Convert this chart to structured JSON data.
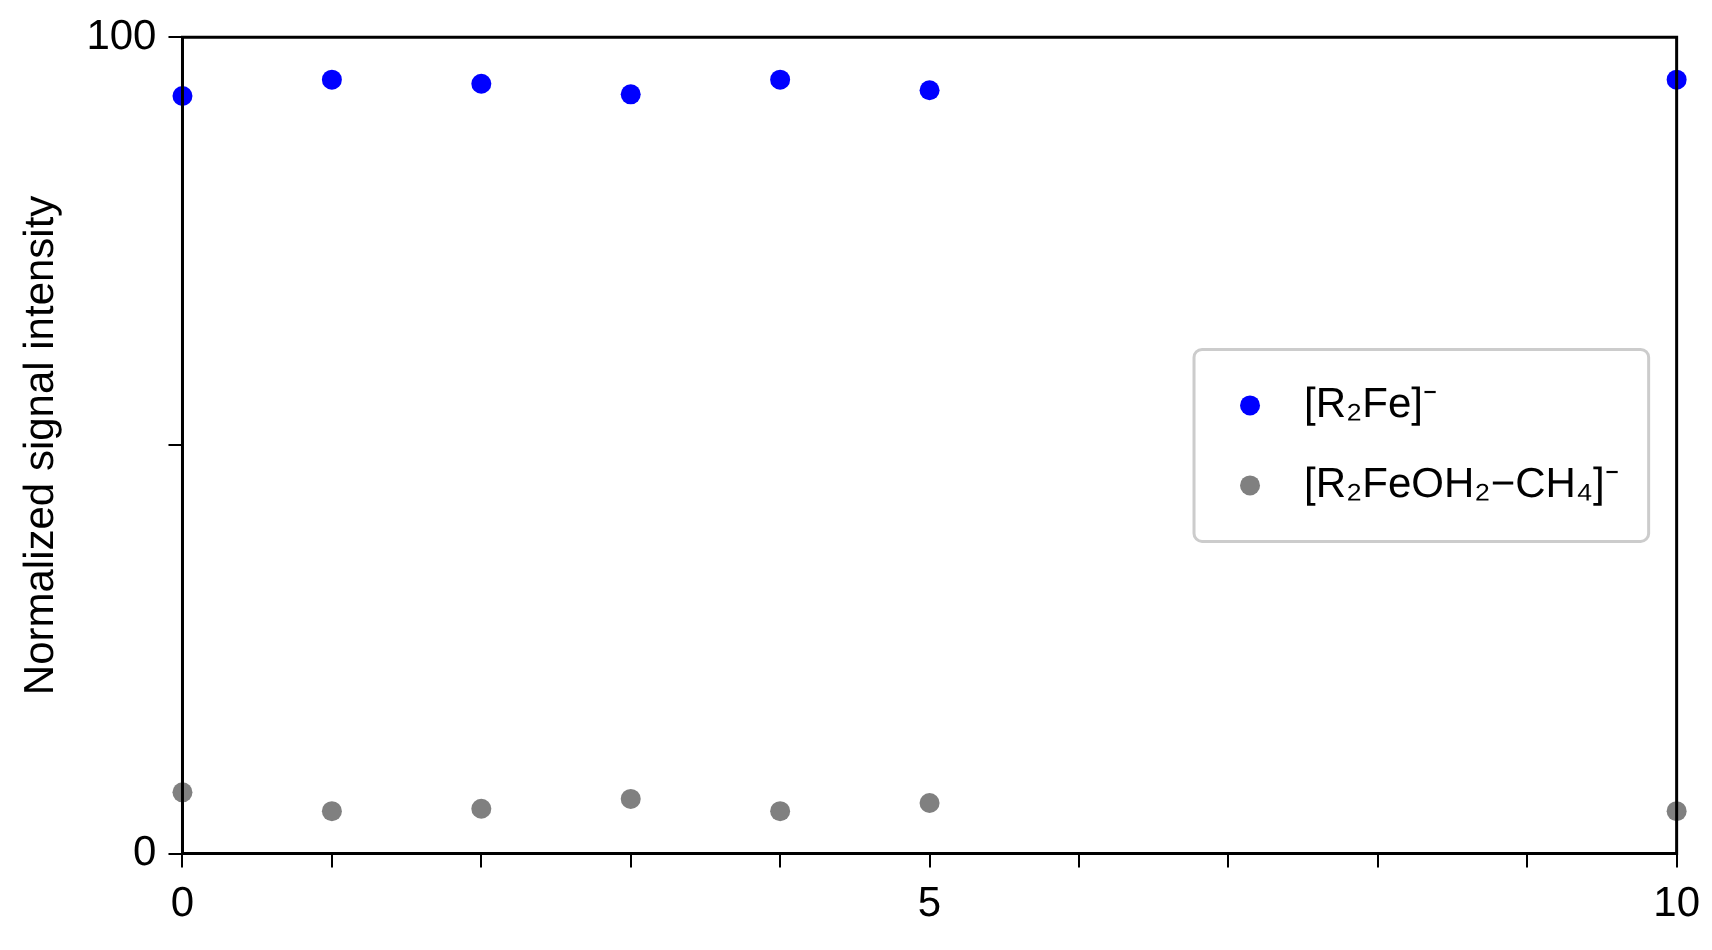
{
  "chart_data": {
    "type": "scatter",
    "ylabel": "Normalized signal intensity",
    "x": [
      0,
      1,
      2,
      3,
      4,
      5,
      10
    ],
    "series": [
      {
        "name": "[R₂Fe]⁻",
        "color": "#0000ff",
        "values": [
          92.8,
          94.8,
          94.3,
          93.0,
          94.8,
          93.5,
          94.8
        ]
      },
      {
        "name": "[R₂FeOH₂−CH₄]⁻",
        "color": "#808080",
        "values": [
          7.5,
          5.2,
          5.5,
          6.7,
          5.2,
          6.2,
          5.2
        ]
      }
    ],
    "xlim": [
      0,
      10
    ],
    "xticks": [
      0,
      {
        "value": 1,
        "label": null
      },
      {
        "value": 2,
        "label": null
      },
      {
        "value": 3,
        "label": null
      },
      {
        "value": 4,
        "label": null
      },
      5,
      {
        "value": 6,
        "label": null
      },
      {
        "value": 7,
        "label": null
      },
      {
        "value": 8,
        "label": null
      },
      {
        "value": 9,
        "label": null
      },
      10
    ],
    "ylim": [
      0,
      100
    ],
    "yticks": [
      0,
      {
        "value": 50,
        "label": null
      },
      100
    ],
    "legend": "right",
    "marker": "circle",
    "grid": false
  }
}
